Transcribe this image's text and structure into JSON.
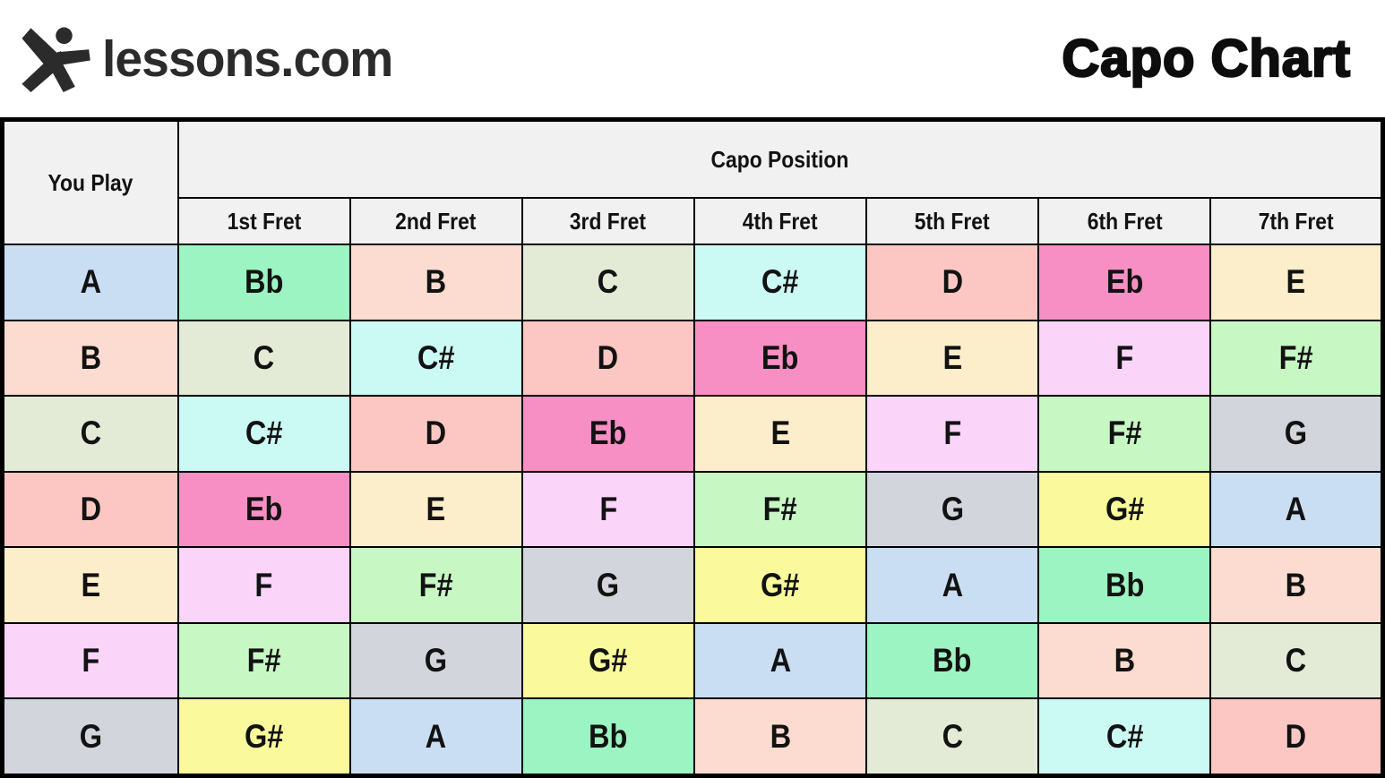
{
  "header": {
    "brand": "lessons.com",
    "title": "Capo Chart",
    "brand_color": "#2b2b2b",
    "title_color": "#0d0d0d"
  },
  "chart_data": {
    "type": "table",
    "title": "Capo Chart",
    "corner_header": "You Play",
    "group_header": "Capo Position",
    "column_headers": [
      "1st Fret",
      "2nd Fret",
      "3rd Fret",
      "4th Fret",
      "5th Fret",
      "6th Fret",
      "7th Fret"
    ],
    "rows": [
      {
        "you_play": "A",
        "cells": [
          "Bb",
          "B",
          "C",
          "C#",
          "D",
          "Eb",
          "E"
        ]
      },
      {
        "you_play": "B",
        "cells": [
          "C",
          "C#",
          "D",
          "Eb",
          "E",
          "F",
          "F#"
        ]
      },
      {
        "you_play": "C",
        "cells": [
          "C#",
          "D",
          "Eb",
          "E",
          "F",
          "F#",
          "G"
        ]
      },
      {
        "you_play": "D",
        "cells": [
          "Eb",
          "E",
          "F",
          "F#",
          "G",
          "G#",
          "A"
        ]
      },
      {
        "you_play": "E",
        "cells": [
          "F",
          "F#",
          "G",
          "G#",
          "A",
          "Bb",
          "B"
        ]
      },
      {
        "you_play": "F",
        "cells": [
          "F#",
          "G",
          "G#",
          "A",
          "Bb",
          "B",
          "C"
        ]
      },
      {
        "you_play": "G",
        "cells": [
          "G#",
          "A",
          "Bb",
          "B",
          "C",
          "C#",
          "D"
        ]
      }
    ],
    "note_colors": {
      "A": "#c9def3",
      "Bb": "#9cf4c2",
      "B": "#fcdcd0",
      "C": "#e3ebd7",
      "C#": "#cbfaf5",
      "D": "#fcc7c3",
      "Eb": "#f88fc4",
      "E": "#fceeca",
      "F": "#fad4f9",
      "F#": "#c7f8c4",
      "G": "#d2d5db",
      "G#": "#fafa9c"
    },
    "header_bg": "#f1f1f1",
    "grid_color": "#000000"
  }
}
